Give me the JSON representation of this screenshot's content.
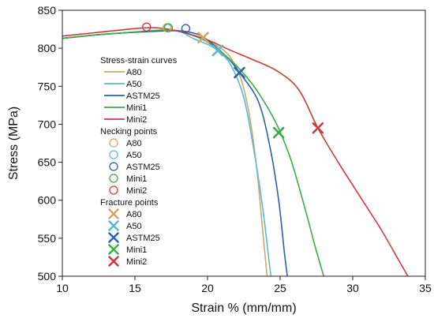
{
  "chart_data": {
    "type": "line",
    "xlabel": "Strain % (mm/mm)",
    "ylabel": "Stress (MPa)",
    "xlim": [
      10,
      35
    ],
    "ylim": [
      500,
      850
    ],
    "xticks": [
      10,
      15,
      20,
      25,
      30,
      35
    ],
    "yticks": [
      500,
      550,
      600,
      650,
      700,
      750,
      800,
      850
    ],
    "legend_position": "top-center",
    "series": [
      {
        "name": "A80",
        "color": "#C9A96B",
        "points": [
          [
            10,
            813
          ],
          [
            12,
            817
          ],
          [
            14,
            820
          ],
          [
            16,
            822
          ],
          [
            17,
            823
          ],
          [
            18,
            823
          ],
          [
            19,
            817
          ],
          [
            19.7,
            813
          ],
          [
            20.5,
            805
          ],
          [
            21.5,
            790
          ],
          [
            22.3,
            760
          ],
          [
            22.9,
            710
          ],
          [
            23.4,
            640
          ],
          [
            23.8,
            560
          ],
          [
            24.1,
            500
          ]
        ]
      },
      {
        "name": "A50",
        "color": "#5BB9D6",
        "points": [
          [
            10,
            813
          ],
          [
            12,
            817
          ],
          [
            14,
            820
          ],
          [
            16,
            822
          ],
          [
            17,
            823
          ],
          [
            18,
            823
          ],
          [
            19,
            813
          ],
          [
            20,
            805
          ],
          [
            20.7,
            797
          ],
          [
            21.6,
            778
          ],
          [
            22.5,
            735
          ],
          [
            23.2,
            665
          ],
          [
            23.8,
            590
          ],
          [
            24.3,
            510
          ],
          [
            24.4,
            500
          ]
        ]
      },
      {
        "name": "ASTM25",
        "color": "#2D5FB3",
        "points": [
          [
            10,
            813
          ],
          [
            12,
            817
          ],
          [
            14,
            820
          ],
          [
            16,
            822
          ],
          [
            18,
            823
          ],
          [
            18.5,
            822
          ],
          [
            19.5,
            817
          ],
          [
            20.5,
            803
          ],
          [
            21.5,
            785
          ],
          [
            22.2,
            768
          ],
          [
            23.5,
            730
          ],
          [
            24.3,
            670
          ],
          [
            24.9,
            600
          ],
          [
            25.3,
            530
          ],
          [
            25.5,
            500
          ]
        ]
      },
      {
        "name": "Mini1",
        "color": "#3DAA4D",
        "points": [
          [
            10,
            813
          ],
          [
            12,
            817
          ],
          [
            14,
            820
          ],
          [
            16,
            823
          ],
          [
            17.3,
            824
          ],
          [
            18.5,
            820
          ],
          [
            20,
            808
          ],
          [
            21.5,
            786
          ],
          [
            23,
            755
          ],
          [
            24.2,
            720
          ],
          [
            25,
            690
          ],
          [
            25.8,
            650
          ],
          [
            26.7,
            590
          ],
          [
            27.4,
            540
          ],
          [
            28,
            500
          ]
        ]
      },
      {
        "name": "Mini2",
        "color": "#CC3B3B",
        "points": [
          [
            10,
            816
          ],
          [
            12,
            820
          ],
          [
            14,
            824
          ],
          [
            15.8,
            827
          ],
          [
            17,
            826
          ],
          [
            18.5,
            820
          ],
          [
            20,
            811
          ],
          [
            21.5,
            798
          ],
          [
            23,
            786
          ],
          [
            24.8,
            770
          ],
          [
            26.3,
            745
          ],
          [
            27.6,
            695
          ],
          [
            29,
            650
          ],
          [
            30.5,
            605
          ],
          [
            32,
            560
          ],
          [
            33.2,
            520
          ],
          [
            33.8,
            500
          ]
        ]
      }
    ],
    "necking_points": [
      {
        "name": "A80",
        "x": 17.2,
        "y": 827,
        "color": "#C9A96B"
      },
      {
        "name": "A50",
        "x": 17.3,
        "y": 827,
        "color": "#5BB9D6"
      },
      {
        "name": "ASTM25",
        "x": 18.5,
        "y": 826,
        "color": "#2D5FB3"
      },
      {
        "name": "Mini1",
        "x": 17.3,
        "y": 827,
        "color": "#3DAA4D"
      },
      {
        "name": "Mini2",
        "x": 15.8,
        "y": 828,
        "color": "#CC3B3B"
      }
    ],
    "fracture_points": [
      {
        "name": "A80",
        "x": 19.7,
        "y": 814,
        "color": "#C9A96B"
      },
      {
        "name": "A50",
        "x": 20.7,
        "y": 797,
        "color": "#5BB9D6"
      },
      {
        "name": "ASTM25",
        "x": 22.2,
        "y": 768,
        "color": "#2D5FB3"
      },
      {
        "name": "Mini1",
        "x": 24.9,
        "y": 689,
        "color": "#3DAA4D"
      },
      {
        "name": "Mini2",
        "x": 27.6,
        "y": 695,
        "color": "#CC3B3B"
      }
    ],
    "legend": {
      "groups": [
        {
          "title": "Stress-strain curves",
          "kind": "line",
          "items": [
            "A80",
            "A50",
            "ASTM25",
            "Mini1",
            "Mini2"
          ]
        },
        {
          "title": "Necking points",
          "kind": "circle",
          "items": [
            "A80",
            "A50",
            "ASTM25",
            "Mini1",
            "Mini2"
          ]
        },
        {
          "title": "Fracture points",
          "kind": "cross",
          "items": [
            "A80",
            "A50",
            "ASTM25",
            "Mini1",
            "Mini2"
          ]
        }
      ]
    }
  }
}
